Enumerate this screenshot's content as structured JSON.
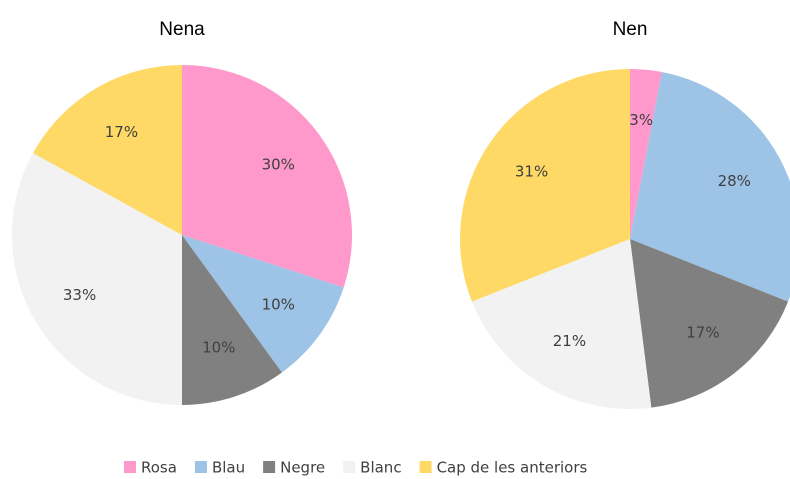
{
  "chart_data": [
    {
      "type": "pie",
      "title": "Nena",
      "categories": [
        "Rosa",
        "Blau",
        "Negre",
        "Blanc",
        "Cap de les anteriors"
      ],
      "values": [
        30,
        10,
        10,
        33,
        17
      ],
      "value_labels": [
        "30%",
        "10%",
        "10%",
        "33%",
        "17%"
      ],
      "colors": [
        "#ff99cc",
        "#9dc3e6",
        "#808080",
        "#f2f2f2",
        "#ffd966"
      ]
    },
    {
      "type": "pie",
      "title": "Nen",
      "categories": [
        "Rosa",
        "Blau",
        "Negre",
        "Blanc",
        "Cap de les anteriors"
      ],
      "values": [
        3,
        28,
        17,
        21,
        31
      ],
      "value_labels": [
        "3%",
        "28%",
        "17%",
        "21%",
        "31%"
      ],
      "colors": [
        "#ff99cc",
        "#9dc3e6",
        "#808080",
        "#f2f2f2",
        "#ffd966"
      ]
    }
  ]
}
